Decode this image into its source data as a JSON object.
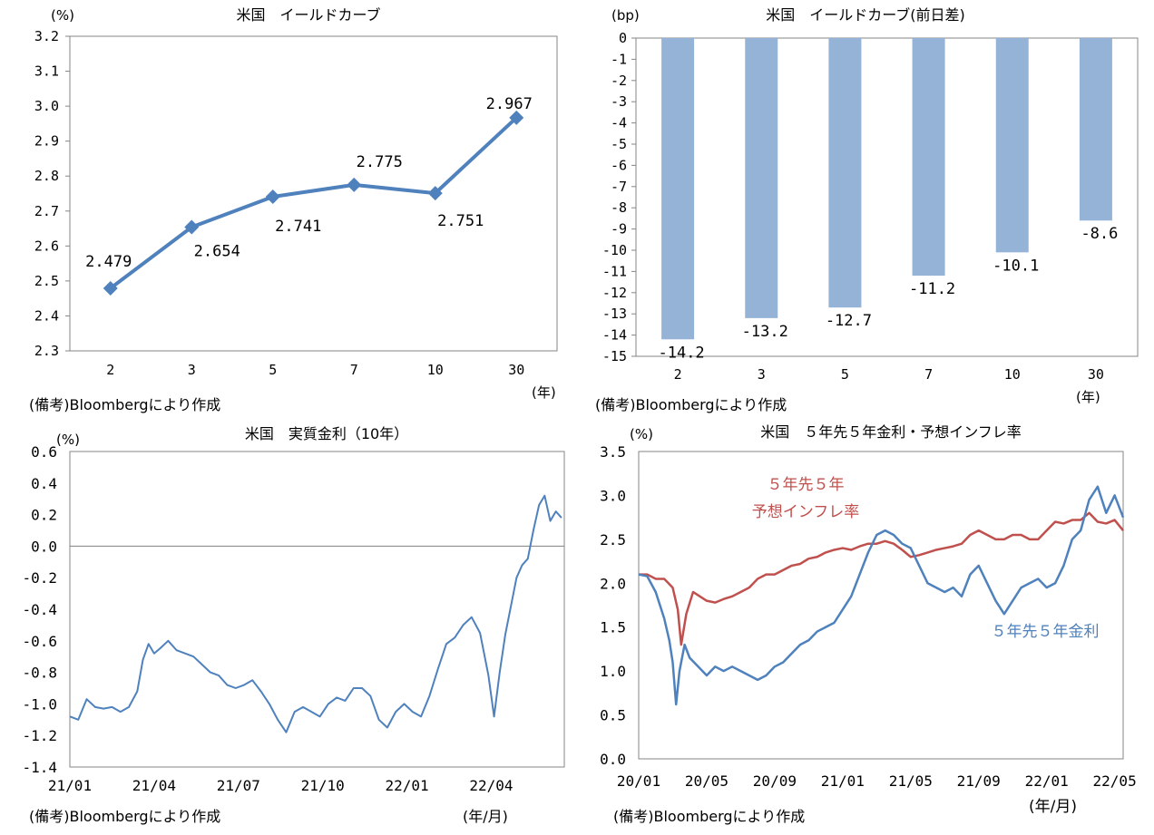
{
  "sources": {
    "p1": "(備考)Bloombergにより作成",
    "p2": "(備考)Bloombergにより作成",
    "p3": "(備考)Bloombergにより作成",
    "p4": "(備考)Bloombergにより作成"
  },
  "colors": {
    "blue": "#4f81bd",
    "bar": "#95b3d7",
    "red": "#c0504d",
    "zero_line": "#808080",
    "grid_border": "#868686"
  },
  "chart_data": [
    {
      "id": "yield_curve",
      "type": "line",
      "title": "米国　イールドカーブ",
      "ylabel": "(%)",
      "xlabel": "(年)",
      "categories": [
        "2",
        "3",
        "5",
        "7",
        "10",
        "30"
      ],
      "values": [
        2.479,
        2.654,
        2.741,
        2.775,
        2.751,
        2.967
      ],
      "data_labels": [
        "2.479",
        "2.654",
        "2.741",
        "2.775",
        "2.751",
        "2.967"
      ],
      "ylim": [
        2.3,
        3.2
      ],
      "yticks": [
        "2.3",
        "2.4",
        "2.5",
        "2.6",
        "2.7",
        "2.8",
        "2.9",
        "3.0",
        "3.1",
        "3.2"
      ],
      "marker": "diamond"
    },
    {
      "id": "yield_change",
      "type": "bar",
      "title": "米国　イールドカーブ(前日差)",
      "ylabel": "(bp)",
      "xlabel": "(年)",
      "categories": [
        "2",
        "3",
        "5",
        "7",
        "10",
        "30"
      ],
      "values": [
        -14.2,
        -13.2,
        -12.7,
        -11.2,
        -10.1,
        -8.6
      ],
      "data_labels": [
        "-14.2",
        "-13.2",
        "-12.7",
        "-11.2",
        "-10.1",
        "-8.6"
      ],
      "ylim": [
        -15,
        0
      ],
      "yticks": [
        "0",
        "-1",
        "-2",
        "-3",
        "-4",
        "-5",
        "-6",
        "-7",
        "-8",
        "-9",
        "-10",
        "-11",
        "-12",
        "-13",
        "-14",
        "-15"
      ]
    },
    {
      "id": "real_rate",
      "type": "line",
      "title": "米国　実質金利（10年）",
      "ylabel": "(%)",
      "xlabel": "(年/月)",
      "xticks": [
        "21/01",
        "21/04",
        "21/07",
        "21/10",
        "22/01",
        "22/04"
      ],
      "yticks": [
        "0.6",
        "0.4",
        "0.2",
        "0.0",
        "-0.2",
        "-0.4",
        "-0.6",
        "-0.8",
        "-1.0",
        "-1.2",
        "-1.4"
      ],
      "ylim": [
        -1.4,
        0.6
      ],
      "x_range_months": [
        0,
        17.6
      ],
      "series": [
        {
          "name": "実質金利",
          "points": [
            [
              0,
              -1.08
            ],
            [
              0.3,
              -1.1
            ],
            [
              0.6,
              -0.97
            ],
            [
              0.9,
              -1.02
            ],
            [
              1.2,
              -1.03
            ],
            [
              1.5,
              -1.02
            ],
            [
              1.8,
              -1.05
            ],
            [
              2.1,
              -1.02
            ],
            [
              2.4,
              -0.92
            ],
            [
              2.6,
              -0.72
            ],
            [
              2.8,
              -0.62
            ],
            [
              3.0,
              -0.68
            ],
            [
              3.2,
              -0.65
            ],
            [
              3.5,
              -0.6
            ],
            [
              3.8,
              -0.66
            ],
            [
              4.1,
              -0.68
            ],
            [
              4.4,
              -0.7
            ],
            [
              4.7,
              -0.75
            ],
            [
              5.0,
              -0.8
            ],
            [
              5.3,
              -0.82
            ],
            [
              5.6,
              -0.88
            ],
            [
              5.9,
              -0.9
            ],
            [
              6.2,
              -0.88
            ],
            [
              6.5,
              -0.85
            ],
            [
              6.8,
              -0.92
            ],
            [
              7.1,
              -1.0
            ],
            [
              7.4,
              -1.1
            ],
            [
              7.7,
              -1.18
            ],
            [
              8.0,
              -1.05
            ],
            [
              8.3,
              -1.02
            ],
            [
              8.6,
              -1.05
            ],
            [
              8.9,
              -1.08
            ],
            [
              9.2,
              -1.0
            ],
            [
              9.5,
              -0.96
            ],
            [
              9.8,
              -0.98
            ],
            [
              10.1,
              -0.9
            ],
            [
              10.4,
              -0.9
            ],
            [
              10.7,
              -0.95
            ],
            [
              11.0,
              -1.1
            ],
            [
              11.3,
              -1.15
            ],
            [
              11.6,
              -1.05
            ],
            [
              11.9,
              -1.0
            ],
            [
              12.2,
              -1.05
            ],
            [
              12.5,
              -1.08
            ],
            [
              12.8,
              -0.95
            ],
            [
              13.1,
              -0.78
            ],
            [
              13.4,
              -0.62
            ],
            [
              13.7,
              -0.58
            ],
            [
              14.0,
              -0.5
            ],
            [
              14.3,
              -0.45
            ],
            [
              14.6,
              -0.55
            ],
            [
              14.9,
              -0.82
            ],
            [
              15.1,
              -1.08
            ],
            [
              15.3,
              -0.8
            ],
            [
              15.5,
              -0.56
            ],
            [
              15.7,
              -0.38
            ],
            [
              15.9,
              -0.2
            ],
            [
              16.1,
              -0.12
            ],
            [
              16.3,
              -0.08
            ],
            [
              16.5,
              0.1
            ],
            [
              16.7,
              0.26
            ],
            [
              16.9,
              0.32
            ],
            [
              17.1,
              0.16
            ],
            [
              17.3,
              0.22
            ],
            [
              17.5,
              0.18
            ]
          ]
        }
      ]
    },
    {
      "id": "five_year_five_year",
      "type": "line",
      "title": "米国　５年先５年金利・予想インフレ率",
      "ylabel": "(%)",
      "xlabel": "(年/月)",
      "xticks": [
        "20/01",
        "20/05",
        "20/09",
        "21/01",
        "21/05",
        "21/09",
        "22/01",
        "22/05"
      ],
      "yticks": [
        "3.5",
        "3.0",
        "2.5",
        "2.0",
        "1.5",
        "1.0",
        "0.5",
        "0.0"
      ],
      "ylim": [
        0.0,
        3.5
      ],
      "x_range_months": [
        0,
        28.5
      ],
      "series": [
        {
          "name": "５年先５年予想インフレ率",
          "label_lines": [
            "５年先５年",
            "予想インフレ率"
          ],
          "color": "#c0504d",
          "points": [
            [
              0,
              2.1
            ],
            [
              0.5,
              2.1
            ],
            [
              1.0,
              2.05
            ],
            [
              1.5,
              2.05
            ],
            [
              2.0,
              1.95
            ],
            [
              2.3,
              1.7
            ],
            [
              2.5,
              1.3
            ],
            [
              2.8,
              1.65
            ],
            [
              3.2,
              1.9
            ],
            [
              3.6,
              1.85
            ],
            [
              4.0,
              1.8
            ],
            [
              4.5,
              1.78
            ],
            [
              5.0,
              1.82
            ],
            [
              5.5,
              1.85
            ],
            [
              6.0,
              1.9
            ],
            [
              6.5,
              1.95
            ],
            [
              7.0,
              2.05
            ],
            [
              7.5,
              2.1
            ],
            [
              8.0,
              2.1
            ],
            [
              8.5,
              2.15
            ],
            [
              9.0,
              2.2
            ],
            [
              9.5,
              2.22
            ],
            [
              10.0,
              2.28
            ],
            [
              10.5,
              2.3
            ],
            [
              11.0,
              2.35
            ],
            [
              11.5,
              2.38
            ],
            [
              12.0,
              2.4
            ],
            [
              12.5,
              2.38
            ],
            [
              13.0,
              2.42
            ],
            [
              13.5,
              2.45
            ],
            [
              14.0,
              2.45
            ],
            [
              14.5,
              2.48
            ],
            [
              15.0,
              2.45
            ],
            [
              15.5,
              2.38
            ],
            [
              16.0,
              2.3
            ],
            [
              16.5,
              2.32
            ],
            [
              17.0,
              2.35
            ],
            [
              17.5,
              2.38
            ],
            [
              18.0,
              2.4
            ],
            [
              18.5,
              2.42
            ],
            [
              19.0,
              2.45
            ],
            [
              19.5,
              2.55
            ],
            [
              20.0,
              2.6
            ],
            [
              20.5,
              2.55
            ],
            [
              21.0,
              2.5
            ],
            [
              21.5,
              2.5
            ],
            [
              22.0,
              2.55
            ],
            [
              22.5,
              2.55
            ],
            [
              23.0,
              2.5
            ],
            [
              23.5,
              2.5
            ],
            [
              24.0,
              2.6
            ],
            [
              24.5,
              2.7
            ],
            [
              25.0,
              2.68
            ],
            [
              25.5,
              2.72
            ],
            [
              26.0,
              2.72
            ],
            [
              26.5,
              2.8
            ],
            [
              27.0,
              2.7
            ],
            [
              27.5,
              2.68
            ],
            [
              28.0,
              2.72
            ],
            [
              28.5,
              2.6
            ]
          ]
        },
        {
          "name": "５年先５年金利",
          "label_lines": [
            "５年先５年金利"
          ],
          "color": "#4f81bd",
          "points": [
            [
              0,
              2.1
            ],
            [
              0.5,
              2.08
            ],
            [
              1.0,
              1.9
            ],
            [
              1.5,
              1.6
            ],
            [
              1.8,
              1.35
            ],
            [
              2.0,
              1.1
            ],
            [
              2.2,
              0.62
            ],
            [
              2.4,
              1.0
            ],
            [
              2.7,
              1.3
            ],
            [
              3.0,
              1.15
            ],
            [
              3.5,
              1.05
            ],
            [
              4.0,
              0.95
            ],
            [
              4.5,
              1.05
            ],
            [
              5.0,
              1.0
            ],
            [
              5.5,
              1.05
            ],
            [
              6.0,
              1.0
            ],
            [
              6.5,
              0.95
            ],
            [
              7.0,
              0.9
            ],
            [
              7.5,
              0.95
            ],
            [
              8.0,
              1.05
            ],
            [
              8.5,
              1.1
            ],
            [
              9.0,
              1.2
            ],
            [
              9.5,
              1.3
            ],
            [
              10.0,
              1.35
            ],
            [
              10.5,
              1.45
            ],
            [
              11.0,
              1.5
            ],
            [
              11.5,
              1.55
            ],
            [
              12.0,
              1.7
            ],
            [
              12.5,
              1.85
            ],
            [
              13.0,
              2.1
            ],
            [
              13.5,
              2.35
            ],
            [
              14.0,
              2.55
            ],
            [
              14.5,
              2.6
            ],
            [
              15.0,
              2.55
            ],
            [
              15.5,
              2.45
            ],
            [
              16.0,
              2.4
            ],
            [
              16.5,
              2.2
            ],
            [
              17.0,
              2.0
            ],
            [
              17.5,
              1.95
            ],
            [
              18.0,
              1.9
            ],
            [
              18.5,
              1.95
            ],
            [
              19.0,
              1.85
            ],
            [
              19.5,
              2.1
            ],
            [
              20.0,
              2.2
            ],
            [
              20.5,
              2.0
            ],
            [
              21.0,
              1.8
            ],
            [
              21.5,
              1.65
            ],
            [
              22.0,
              1.8
            ],
            [
              22.5,
              1.95
            ],
            [
              23.0,
              2.0
            ],
            [
              23.5,
              2.05
            ],
            [
              24.0,
              1.95
            ],
            [
              24.5,
              2.0
            ],
            [
              25.0,
              2.2
            ],
            [
              25.5,
              2.5
            ],
            [
              26.0,
              2.6
            ],
            [
              26.5,
              2.95
            ],
            [
              27.0,
              3.1
            ],
            [
              27.5,
              2.8
            ],
            [
              28.0,
              3.0
            ],
            [
              28.5,
              2.75
            ]
          ]
        }
      ]
    }
  ]
}
